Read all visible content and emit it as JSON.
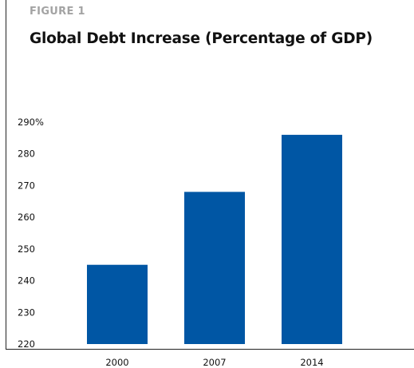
{
  "figure": {
    "label": "FIGURE 1",
    "title": "Global Debt Increase (Percentage of GDP)"
  },
  "chart_data": {
    "type": "bar",
    "categories": [
      "2000",
      "2007",
      "2014"
    ],
    "values": [
      245,
      268,
      286
    ],
    "y_tick_labels": [
      "290%",
      "280",
      "270",
      "260",
      "250",
      "240",
      "230",
      "220"
    ],
    "y_tick_values": [
      290,
      280,
      270,
      260,
      250,
      240,
      230,
      220
    ],
    "ylim": [
      220,
      290
    ],
    "bar_color": "#0056a4",
    "grid": false,
    "legend": "none"
  }
}
